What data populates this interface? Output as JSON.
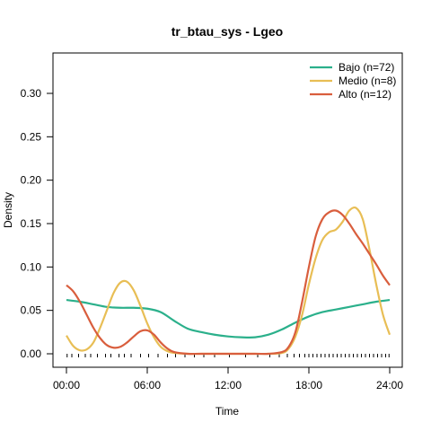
{
  "chart_data": {
    "type": "line",
    "title": "tr_btau_sys - Lgeo",
    "xlabel": "Time",
    "ylabel": "Density",
    "xlim": [
      0,
      24
    ],
    "ylim": [
      0,
      0.34
    ],
    "x_ticks": [
      {
        "value": 0,
        "label": "00:00"
      },
      {
        "value": 6,
        "label": "06:00"
      },
      {
        "value": 12,
        "label": "12:00"
      },
      {
        "value": 18,
        "label": "18:00"
      },
      {
        "value": 24,
        "label": "24:00"
      }
    ],
    "y_ticks": [
      {
        "value": 0.0,
        "label": "0.00"
      },
      {
        "value": 0.05,
        "label": "0.05"
      },
      {
        "value": 0.1,
        "label": "0.10"
      },
      {
        "value": 0.15,
        "label": "0.15"
      },
      {
        "value": 0.2,
        "label": "0.20"
      },
      {
        "value": 0.25,
        "label": "0.25"
      },
      {
        "value": 0.3,
        "label": "0.30"
      }
    ],
    "legend_position": "top-right",
    "grid": false,
    "series": [
      {
        "name": "Bajo (n=72)",
        "color": "#2BB08B",
        "x": [
          0,
          1,
          2,
          3,
          4,
          5,
          6,
          7,
          8,
          9,
          10,
          11,
          12,
          13,
          14,
          15,
          16,
          17,
          18,
          19,
          20,
          21,
          22,
          23,
          24
        ],
        "y": [
          0.062,
          0.06,
          0.057,
          0.054,
          0.053,
          0.053,
          0.052,
          0.048,
          0.038,
          0.029,
          0.025,
          0.022,
          0.02,
          0.019,
          0.019,
          0.022,
          0.028,
          0.036,
          0.043,
          0.048,
          0.051,
          0.054,
          0.057,
          0.06,
          0.062
        ]
      },
      {
        "name": "Medio (n=8)",
        "color": "#E8BE55",
        "x": [
          0,
          0.5,
          1,
          1.5,
          2,
          2.5,
          3,
          3.5,
          4,
          4.5,
          5,
          5.5,
          6,
          6.5,
          7,
          7.5,
          8,
          9,
          10,
          12,
          14,
          15,
          16,
          16.5,
          17,
          17.5,
          18,
          18.5,
          19,
          19.5,
          20,
          20.5,
          21,
          21.5,
          22,
          22.5,
          23,
          23.5,
          24
        ],
        "y": [
          0.021,
          0.009,
          0.004,
          0.005,
          0.013,
          0.03,
          0.05,
          0.07,
          0.082,
          0.083,
          0.073,
          0.055,
          0.035,
          0.019,
          0.008,
          0.003,
          0.001,
          0.0,
          0.0,
          0.0,
          0.0,
          0.0,
          0.001,
          0.006,
          0.02,
          0.045,
          0.08,
          0.11,
          0.131,
          0.14,
          0.143,
          0.152,
          0.165,
          0.168,
          0.155,
          0.12,
          0.08,
          0.045,
          0.022
        ]
      },
      {
        "name": "Alto (n=12)",
        "color": "#D95E3D",
        "x": [
          0,
          0.5,
          1,
          1.5,
          2,
          2.5,
          3,
          3.5,
          4,
          4.5,
          5,
          5.5,
          6,
          6.5,
          7,
          7.5,
          8,
          9,
          10,
          12,
          14,
          15,
          16,
          16.5,
          17,
          17.5,
          18,
          18.5,
          19,
          19.5,
          20,
          20.5,
          21,
          21.5,
          22,
          22.5,
          23,
          23.5,
          24
        ],
        "y": [
          0.079,
          0.072,
          0.06,
          0.045,
          0.03,
          0.018,
          0.01,
          0.007,
          0.008,
          0.013,
          0.02,
          0.026,
          0.027,
          0.022,
          0.013,
          0.006,
          0.002,
          0.0,
          0.0,
          0.0,
          0.0,
          0.0,
          0.002,
          0.008,
          0.025,
          0.06,
          0.1,
          0.135,
          0.155,
          0.163,
          0.165,
          0.16,
          0.15,
          0.138,
          0.127,
          0.115,
          0.103,
          0.09,
          0.079
        ]
      }
    ],
    "rug": [
      0.05,
      0.4,
      0.9,
      1.4,
      1.8,
      2.3,
      2.9,
      3.3,
      3.9,
      4.3,
      4.8,
      5.5,
      6.1,
      6.8,
      7.5,
      8.1,
      8.8,
      9.5,
      10.2,
      11.0,
      12.1,
      13.3,
      14.2,
      15.1,
      15.8,
      16.4,
      16.9,
      17.3,
      17.7,
      18.0,
      18.3,
      18.6,
      18.9,
      19.2,
      19.5,
      19.8,
      20.1,
      20.4,
      20.7,
      21.0,
      21.3,
      21.6,
      21.9,
      22.2,
      22.5,
      22.8,
      23.1,
      23.4,
      23.7,
      23.95
    ]
  }
}
